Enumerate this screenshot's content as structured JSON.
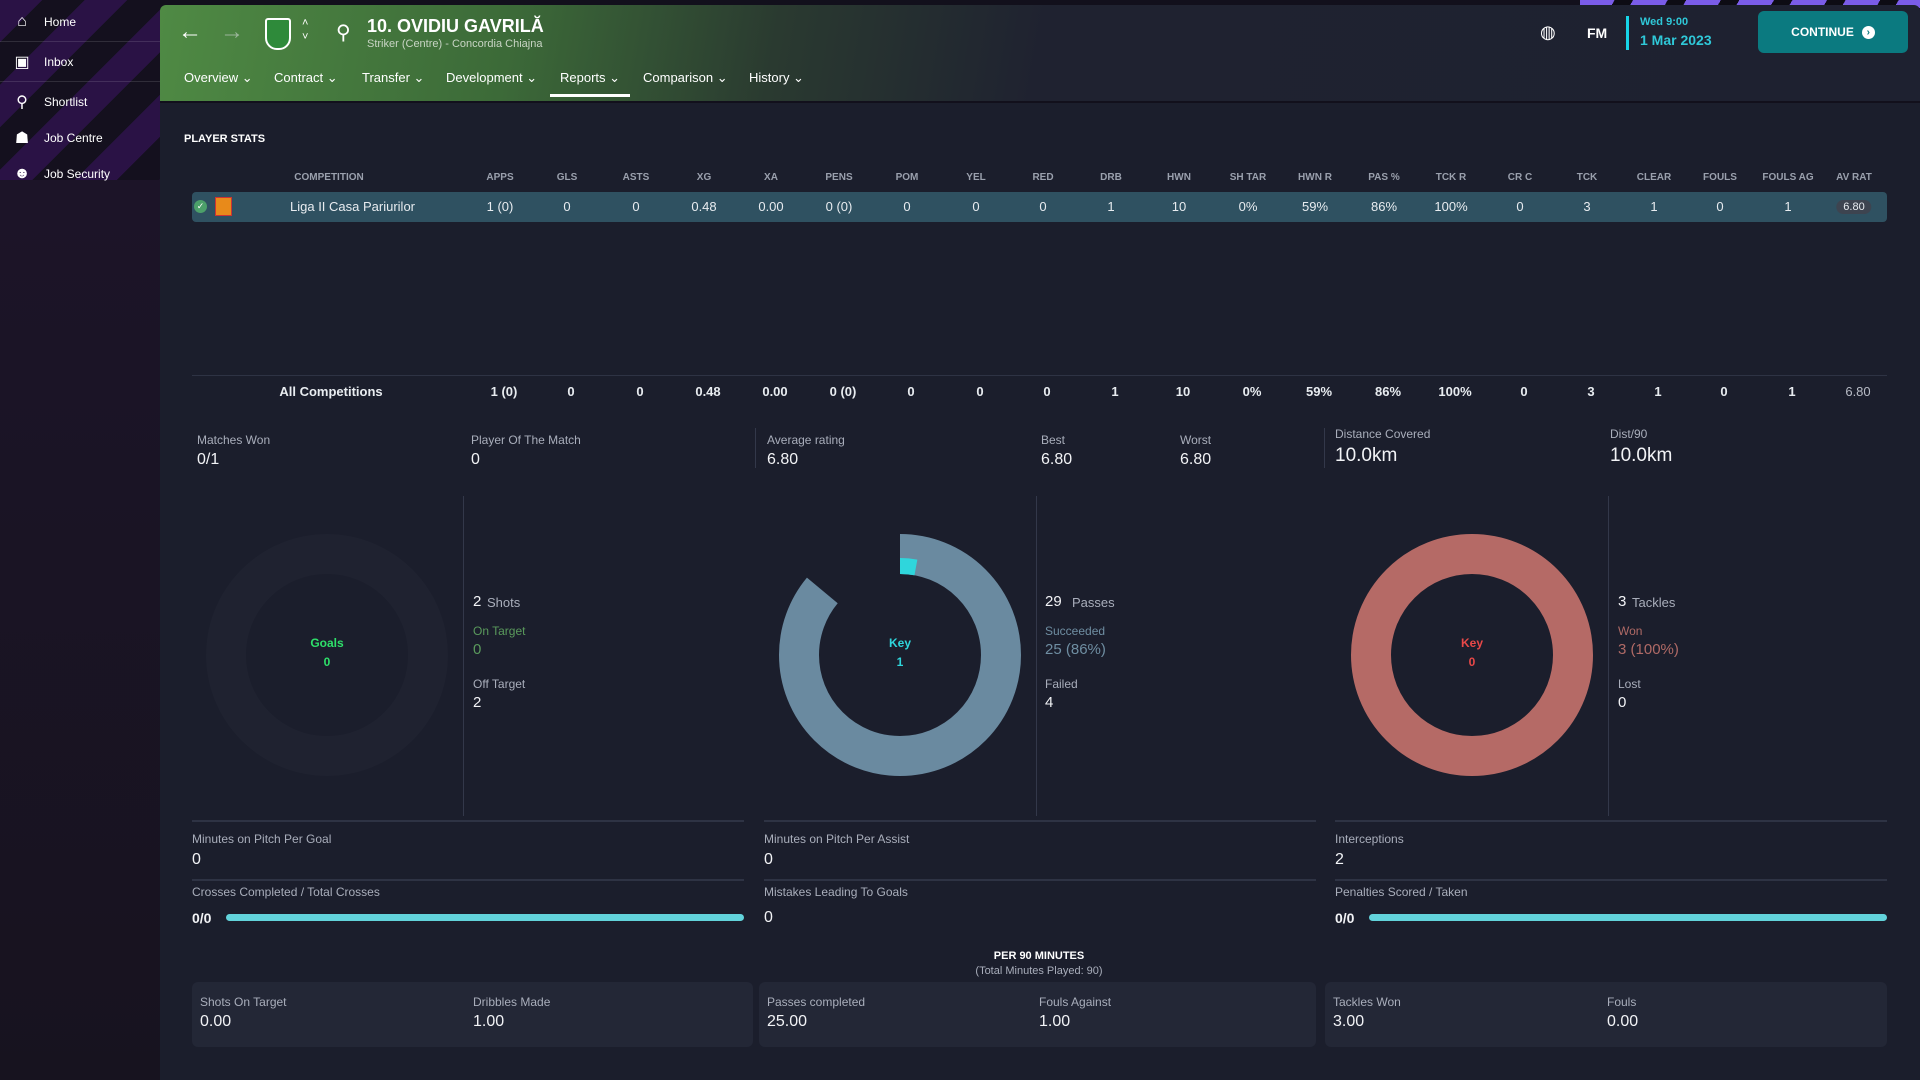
{
  "sidebar": {
    "items": [
      {
        "label": "Home",
        "icon": "home-icon"
      },
      {
        "label": "Inbox",
        "icon": "inbox-icon"
      },
      {
        "label": "Shortlist",
        "icon": "search-icon"
      },
      {
        "label": "Job Centre",
        "icon": "job-centre-icon"
      },
      {
        "label": "Job Security",
        "icon": "job-security-icon"
      }
    ]
  },
  "header": {
    "title": "10. OVIDIU GAVRILĂ",
    "subtitle": "Striker (Centre) - Concordia Chiajna",
    "fm": "FM",
    "day_time": "Wed 9:00",
    "date": "1 Mar 2023",
    "continue": "CONTINUE"
  },
  "tabs": [
    {
      "label": "Overview ⌄"
    },
    {
      "label": "Contract ⌄"
    },
    {
      "label": "Transfer ⌄"
    },
    {
      "label": "Development ⌄"
    },
    {
      "label": "Reports ⌄",
      "active": true
    },
    {
      "label": "Comparison ⌄"
    },
    {
      "label": "History ⌄"
    }
  ],
  "section_title": "PLAYER STATS",
  "table": {
    "columns": [
      "COMPETITION",
      "APPS",
      "GLS",
      "ASTS",
      "XG",
      "XA",
      "PENS",
      "POM",
      "YEL",
      "RED",
      "DRB",
      "HWN",
      "SH TAR",
      "HWN R",
      "PAS %",
      "TCK R",
      "CR C",
      "TCK",
      "CLEAR",
      "FOULS",
      "FOULS AG",
      "AV RAT"
    ],
    "rows": [
      [
        "Liga II Casa Pariurilor",
        "1 (0)",
        "0",
        "0",
        "0.48",
        "0.00",
        "0 (0)",
        "0",
        "0",
        "0",
        "1",
        "10",
        "0%",
        "59%",
        "86%",
        "100%",
        "0",
        "3",
        "1",
        "0",
        "1",
        "6.80"
      ]
    ],
    "total": [
      "All Competitions",
      "1 (0)",
      "0",
      "0",
      "0.48",
      "0.00",
      "0 (0)",
      "0",
      "0",
      "0",
      "1",
      "10",
      "0%",
      "59%",
      "86%",
      "100%",
      "0",
      "3",
      "1",
      "0",
      "1",
      "6.80"
    ]
  },
  "summary": [
    {
      "label": "Matches Won",
      "value": "0/1"
    },
    {
      "label": "Player Of The Match",
      "value": "0"
    },
    {
      "label": "Average rating",
      "value": "6.80"
    },
    {
      "label": "Best",
      "value": "6.80"
    },
    {
      "label": "Worst",
      "value": "6.80"
    },
    {
      "label": "Distance Covered",
      "value": "10.0km"
    },
    {
      "label": "Dist/90",
      "value": "10.0km"
    }
  ],
  "donuts": [
    {
      "center_label": "Goals",
      "center_value": "0",
      "color": "#2ee06a",
      "total": "2",
      "total_label": "Shots",
      "a_label": "On Target",
      "a_value": "0",
      "b_label": "Off Target",
      "b_value": "2",
      "fraction": 0
    },
    {
      "center_label": "Key",
      "center_value": "1",
      "color": "#2fd6dc",
      "total": "29",
      "total_label": "Passes",
      "a_label": "Succeeded",
      "a_value": "25 (86%)",
      "b_label": "Failed",
      "b_value": "4",
      "fraction": 0.86
    },
    {
      "center_label": "Key",
      "center_value": "0",
      "color": "#e84848",
      "total": "3",
      "total_label": "Tackles",
      "a_label": "Won",
      "a_value": "3 (100%)",
      "b_label": "Lost",
      "b_value": "0",
      "fraction": 1.0
    }
  ],
  "misc": [
    {
      "label": "Minutes on Pitch Per Goal",
      "value": "0"
    },
    {
      "label": "Minutes on Pitch Per Assist",
      "value": "0"
    },
    {
      "label": "Interceptions",
      "value": "2"
    },
    {
      "label": "Crosses Completed / Total Crosses",
      "value": "0/0",
      "bar": 1
    },
    {
      "label": "Mistakes Leading To Goals",
      "value": "0"
    },
    {
      "label": "Penalties Scored / Taken",
      "value": "0/0",
      "bar": 1
    }
  ],
  "per90": {
    "title": "PER 90 MINUTES",
    "subtitle": "(Total Minutes Played: 90)",
    "items": [
      {
        "label": "Shots On Target",
        "value": "0.00"
      },
      {
        "label": "Dribbles Made",
        "value": "1.00"
      },
      {
        "label": "Passes completed",
        "value": "25.00"
      },
      {
        "label": "Fouls Against",
        "value": "1.00"
      },
      {
        "label": "Tackles Won",
        "value": "3.00"
      },
      {
        "label": "Fouls",
        "value": "0.00"
      }
    ]
  }
}
